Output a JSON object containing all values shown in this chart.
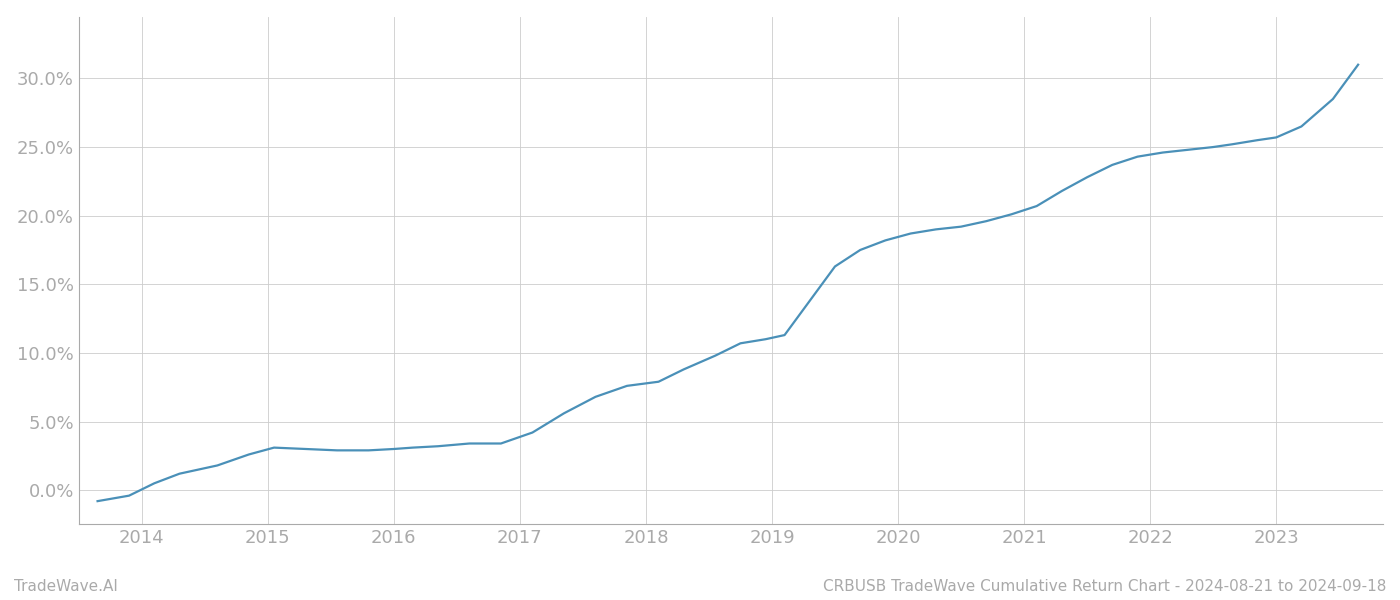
{
  "title": "CRBUSB TradeWave Cumulative Return Chart - 2024-08-21 to 2024-09-18",
  "watermark": "TradeWave.AI",
  "line_color": "#4a90b8",
  "background_color": "#ffffff",
  "grid_color": "#cccccc",
  "x_values": [
    2013.65,
    2013.9,
    2014.1,
    2014.3,
    2014.6,
    2014.85,
    2015.05,
    2015.3,
    2015.55,
    2015.8,
    2016.0,
    2016.15,
    2016.35,
    2016.6,
    2016.85,
    2017.1,
    2017.35,
    2017.6,
    2017.85,
    2018.1,
    2018.3,
    2018.55,
    2018.75,
    2018.95,
    2019.1,
    2019.3,
    2019.5,
    2019.7,
    2019.9,
    2020.1,
    2020.3,
    2020.5,
    2020.7,
    2020.9,
    2021.1,
    2021.3,
    2021.5,
    2021.7,
    2021.9,
    2022.1,
    2022.3,
    2022.5,
    2022.65,
    2022.85,
    2023.0,
    2023.2,
    2023.45,
    2023.65
  ],
  "y_values": [
    -0.008,
    -0.004,
    0.005,
    0.012,
    0.018,
    0.026,
    0.031,
    0.03,
    0.029,
    0.029,
    0.03,
    0.031,
    0.032,
    0.034,
    0.034,
    0.042,
    0.056,
    0.068,
    0.076,
    0.079,
    0.088,
    0.098,
    0.107,
    0.11,
    0.113,
    0.138,
    0.163,
    0.175,
    0.182,
    0.187,
    0.19,
    0.192,
    0.196,
    0.201,
    0.207,
    0.218,
    0.228,
    0.237,
    0.243,
    0.246,
    0.248,
    0.25,
    0.252,
    0.255,
    0.257,
    0.265,
    0.285,
    0.31
  ],
  "xlim": [
    2013.5,
    2023.85
  ],
  "ylim": [
    -0.025,
    0.345
  ],
  "yticks": [
    0.0,
    0.05,
    0.1,
    0.15,
    0.2,
    0.25,
    0.3
  ],
  "ytick_labels": [
    "0.0%",
    "5.0%",
    "10.0%",
    "15.0%",
    "20.0%",
    "25.0%",
    "30.0%"
  ],
  "xticks": [
    2014,
    2015,
    2016,
    2017,
    2018,
    2019,
    2020,
    2021,
    2022,
    2023
  ],
  "xtick_labels": [
    "2014",
    "2015",
    "2016",
    "2017",
    "2018",
    "2019",
    "2020",
    "2021",
    "2022",
    "2023"
  ],
  "tick_color": "#aaaaaa",
  "axis_color": "#aaaaaa",
  "font_color": "#888888",
  "footer_color": "#aaaaaa",
  "line_width": 1.6,
  "tick_fontsize": 13,
  "footer_fontsize": 11
}
